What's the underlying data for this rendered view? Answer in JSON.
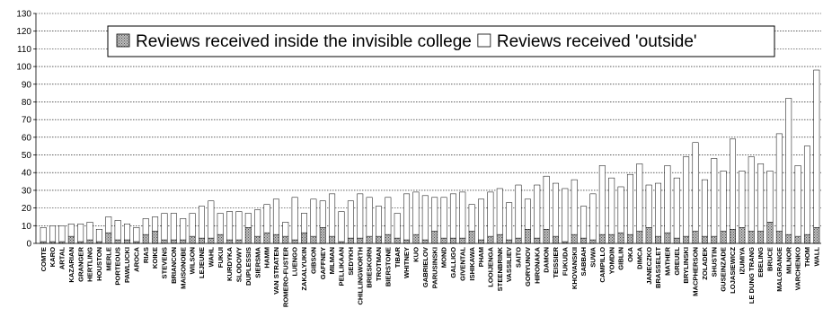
{
  "chart_data": {
    "type": "bar",
    "stacked": true,
    "title": "",
    "xlabel": "",
    "ylabel": "",
    "ylim": [
      0,
      130
    ],
    "yticks": [
      0,
      10,
      20,
      30,
      40,
      50,
      60,
      70,
      80,
      90,
      100,
      110,
      120,
      130
    ],
    "grid": true,
    "legend_position": "top-center",
    "categories": [
      "COMTE",
      "KARO",
      "ARTAL",
      "KAZARIAN",
      "GRANGER",
      "HERTLING",
      "HOUSTON",
      "MERLE",
      "PORTEOUS",
      "PAWLUCKI",
      "AROCA",
      "RIAS",
      "KOIKE",
      "STEVENS",
      "BRIANCON",
      "MAISONOBE",
      "WILSON",
      "LEJEUNE",
      "WAHL",
      "FUKUI",
      "KURDYKA",
      "SLODOWY",
      "DUPLESSIS",
      "SIERSMA",
      "HAMM",
      "VAN STRATEN",
      "ROMERO-FUSTER",
      "LUENGO",
      "ZAKALYUKIN",
      "GIBSON",
      "GAFFNEY",
      "MILMAN",
      "PELLIKAAN",
      "SEDYKH",
      "CHILLINGWORTH",
      "BRIESKORN",
      "TROTMAN",
      "BIERSTONE",
      "TIBAR",
      "WHITNEY",
      "KUO",
      "GABRIELOV",
      "PARUSINSKI",
      "MOND",
      "GALLIGO",
      "GIVENTAL",
      "ISHIKAWA",
      "PHAM",
      "LOOIJENGA",
      "STEENBRINK",
      "VASSILIEV",
      "SAITO",
      "GORYUNOV",
      "HIRONAKA",
      "DAMON",
      "TEISSIER",
      "FUKUDA",
      "KHOVANSKII",
      "SABBAH",
      "SUWA",
      "CAMPILLO",
      "YOMDIN",
      "GIBLIN",
      "OKA",
      "DIMCA",
      "JANECZKO",
      "BRASSELET",
      "MATHER",
      "GREUEL",
      "BRYLINSKI",
      "MACPHERSON",
      "ZOLADEK",
      "SHUSTIN",
      "GUSEINZADE",
      "LOJASIEWICZ",
      "IZUMIYA",
      "LE DUNG TRANG",
      "EBELING",
      "BRUCE",
      "MALGRANGE",
      "MILNOR",
      "VARCHENKO",
      "THOM",
      "WALL"
    ],
    "series": [
      {
        "name": "Reviews received inside the invisible college",
        "color": "#9a9a9a",
        "pattern": "dotted",
        "values": [
          1,
          1,
          1,
          4,
          1,
          2,
          1,
          6,
          2,
          2,
          1,
          5,
          7,
          2,
          2,
          2,
          4,
          3,
          3,
          5,
          2,
          2,
          9,
          4,
          6,
          5,
          4,
          2,
          6,
          4,
          9,
          4,
          1,
          3,
          3,
          4,
          4,
          5,
          3,
          2,
          5,
          2,
          7,
          3,
          3,
          3,
          7,
          2,
          4,
          5,
          2,
          3,
          8,
          3,
          8,
          4,
          1,
          5,
          3,
          2,
          5,
          5,
          6,
          5,
          7,
          9,
          4,
          6,
          3,
          4,
          7,
          4,
          4,
          7,
          8,
          9,
          7,
          7,
          12,
          7,
          5,
          4,
          5,
          9
        ]
      },
      {
        "name": "Reviews received 'outside'",
        "color": "#ffffff",
        "pattern": "solid",
        "values": [
          8,
          9,
          9,
          7,
          10,
          10,
          7,
          9,
          11,
          9,
          8,
          9,
          8,
          15,
          15,
          12,
          13,
          18,
          21,
          12,
          16,
          16,
          8,
          15,
          16,
          20,
          8,
          24,
          11,
          21,
          15,
          24,
          17,
          21,
          25,
          22,
          17,
          21,
          14,
          26,
          24,
          25,
          19,
          23,
          25,
          26,
          15,
          23,
          25,
          26,
          21,
          30,
          17,
          30,
          30,
          30,
          30,
          31,
          18,
          26,
          39,
          32,
          26,
          34,
          38,
          24,
          30,
          38,
          34,
          45,
          50,
          32,
          44,
          34,
          51,
          32,
          42,
          38,
          29,
          55,
          77,
          40,
          50,
          89
        ]
      }
    ]
  }
}
